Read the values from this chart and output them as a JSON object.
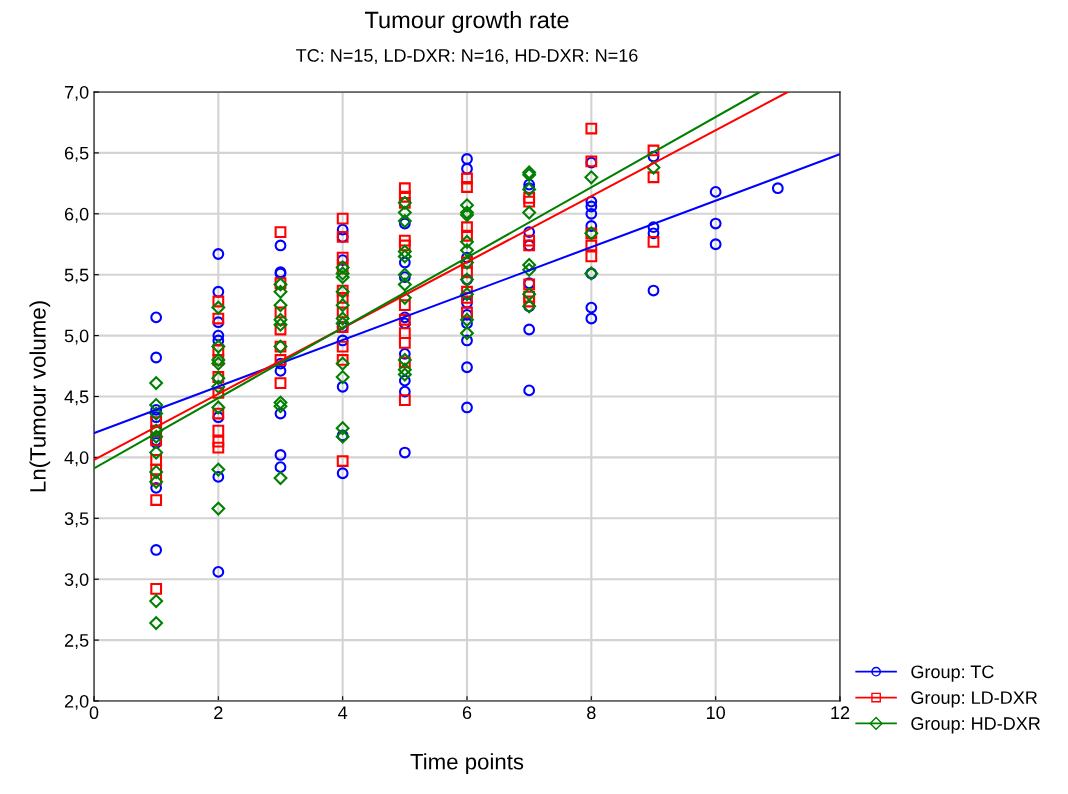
{
  "chart_data": {
    "type": "scatter",
    "title": "Tumour growth rate",
    "subtitle": "TC: N=15, LD-DXR: N=16, HD-DXR: N=16",
    "xlabel": "Time points",
    "ylabel": "Ln(Tumour volume)",
    "xlim": [
      0,
      12
    ],
    "ylim": [
      2.0,
      7.0
    ],
    "xticks": [
      0,
      2,
      4,
      6,
      8,
      10,
      12
    ],
    "yticks": [
      {
        "value": 2.0,
        "label": "2,0"
      },
      {
        "value": 2.5,
        "label": "2,5"
      },
      {
        "value": 3.0,
        "label": "3,0"
      },
      {
        "value": 3.5,
        "label": "3,5"
      },
      {
        "value": 4.0,
        "label": "4,0"
      },
      {
        "value": 4.5,
        "label": "4,5"
      },
      {
        "value": 5.0,
        "label": "5,0"
      },
      {
        "value": 5.5,
        "label": "5,5"
      },
      {
        "value": 6.0,
        "label": "6,0"
      },
      {
        "value": 6.5,
        "label": "6,5"
      },
      {
        "value": 7.0,
        "label": "7,0"
      }
    ],
    "grid": true,
    "legend": "bottom right",
    "series": [
      {
        "name": "Group: TC",
        "color": "#0000ff",
        "marker": "circle",
        "x": [
          1,
          1,
          1,
          1,
          1,
          1,
          1,
          1,
          2,
          2,
          2,
          2,
          2,
          2,
          2,
          2,
          3,
          3,
          3,
          3,
          3,
          3,
          3,
          3,
          4,
          4,
          4,
          4,
          4,
          4,
          4,
          4,
          5,
          5,
          5,
          5,
          5,
          5,
          5,
          5,
          5,
          6,
          6,
          6,
          6,
          6,
          6,
          6,
          6,
          6,
          6,
          7,
          7,
          7,
          7,
          7,
          7,
          7,
          7,
          8,
          8,
          8,
          8,
          8,
          8,
          8,
          8,
          9,
          9,
          9,
          9,
          10,
          10,
          10,
          11
        ],
        "values": [
          5.15,
          4.82,
          4.39,
          4.33,
          4.12,
          4.14,
          3.75,
          3.24,
          5.67,
          5.36,
          5.11,
          5.0,
          4.96,
          4.33,
          3.84,
          3.06,
          5.74,
          5.52,
          5.51,
          4.77,
          4.71,
          4.36,
          4.02,
          3.92,
          5.87,
          5.81,
          5.62,
          5.07,
          4.96,
          4.58,
          4.18,
          3.87,
          5.92,
          5.6,
          5.48,
          5.15,
          5.1,
          4.85,
          4.63,
          4.54,
          4.04,
          6.45,
          6.37,
          5.64,
          5.46,
          5.27,
          5.17,
          5.1,
          4.96,
          4.74,
          4.41,
          6.24,
          6.21,
          5.85,
          5.74,
          5.43,
          5.24,
          5.05,
          4.55,
          6.42,
          6.1,
          6.06,
          6.0,
          5.9,
          5.51,
          5.23,
          5.14,
          6.47,
          5.89,
          5.84,
          5.37,
          6.18,
          5.92,
          5.75,
          6.21
        ]
      },
      {
        "name": "Group: LD-DXR",
        "color": "#ff0000",
        "marker": "square",
        "x": [
          1,
          1,
          1,
          1,
          1,
          1,
          1,
          1,
          2,
          2,
          2,
          2,
          2,
          2,
          2,
          2,
          2,
          2,
          3,
          3,
          3,
          3,
          3,
          3,
          3,
          4,
          4,
          4,
          4,
          4,
          4,
          4,
          4,
          4,
          4,
          4,
          5,
          5,
          5,
          5,
          5,
          5,
          5,
          5,
          5,
          5,
          5,
          6,
          6,
          6,
          6,
          6,
          6,
          6,
          6,
          6,
          7,
          7,
          7,
          7,
          7,
          7,
          7,
          8,
          8,
          8,
          8,
          8,
          9,
          9,
          9
        ],
        "values": [
          4.29,
          4.22,
          4.14,
          3.98,
          3.9,
          3.82,
          3.65,
          2.92,
          5.28,
          5.14,
          4.88,
          4.8,
          4.66,
          4.53,
          4.36,
          4.22,
          4.13,
          4.08,
          5.85,
          5.43,
          5.19,
          5.05,
          4.91,
          4.8,
          4.61,
          5.96,
          5.81,
          5.64,
          5.55,
          5.37,
          5.31,
          5.19,
          5.07,
          4.91,
          4.8,
          3.97,
          6.21,
          6.14,
          6.09,
          5.78,
          5.74,
          5.25,
          5.13,
          5.02,
          4.94,
          4.78,
          4.47,
          6.29,
          6.22,
          5.89,
          5.82,
          5.6,
          5.52,
          5.36,
          5.31,
          5.19,
          6.13,
          6.1,
          5.78,
          5.74,
          5.42,
          5.32,
          5.28,
          6.7,
          6.43,
          5.84,
          5.74,
          5.65,
          6.52,
          6.3,
          5.77
        ]
      },
      {
        "name": "Group: HD-DXR",
        "color": "#008000",
        "marker": "diamond",
        "x": [
          1,
          1,
          1,
          1,
          1,
          1,
          1,
          1,
          1,
          1,
          2,
          2,
          2,
          2,
          2,
          2,
          2,
          2,
          2,
          3,
          3,
          3,
          3,
          3,
          3,
          3,
          3,
          3,
          4,
          4,
          4,
          4,
          4,
          4,
          4,
          4,
          4,
          4,
          4,
          5,
          5,
          5,
          5,
          5,
          5,
          5,
          5,
          5,
          5,
          5,
          6,
          6,
          6,
          6,
          6,
          6,
          6,
          6,
          6,
          6,
          7,
          7,
          7,
          7,
          7,
          7,
          7,
          7,
          8,
          8,
          8,
          9
        ],
        "values": [
          4.61,
          4.43,
          4.36,
          4.22,
          4.17,
          4.04,
          3.88,
          3.8,
          2.82,
          2.64,
          5.23,
          4.91,
          4.8,
          4.77,
          4.65,
          4.58,
          4.41,
          3.9,
          3.58,
          5.42,
          5.36,
          5.25,
          5.13,
          5.09,
          4.91,
          4.45,
          4.42,
          3.83,
          5.56,
          5.51,
          5.48,
          5.36,
          5.25,
          5.14,
          5.1,
          4.77,
          4.66,
          4.24,
          4.17,
          6.09,
          6.01,
          5.94,
          5.69,
          5.65,
          5.5,
          5.42,
          5.31,
          4.8,
          4.72,
          4.68,
          6.07,
          6.01,
          5.99,
          5.77,
          5.7,
          5.6,
          5.46,
          5.34,
          5.13,
          5.02,
          6.34,
          6.32,
          6.2,
          6.01,
          5.58,
          5.54,
          5.34,
          5.24,
          6.3,
          5.84,
          5.51,
          6.38
        ]
      },
      {
        "type": "line",
        "color": "#0000ff",
        "x": [
          0,
          12
        ],
        "values": [
          4.2,
          6.49
        ]
      },
      {
        "type": "line",
        "color": "#ff0000",
        "x": [
          0,
          11.16
        ],
        "values": [
          3.98,
          7.0
        ]
      },
      {
        "type": "line",
        "color": "#008000",
        "x": [
          0,
          10.71
        ],
        "values": [
          3.91,
          7.0
        ]
      }
    ]
  }
}
